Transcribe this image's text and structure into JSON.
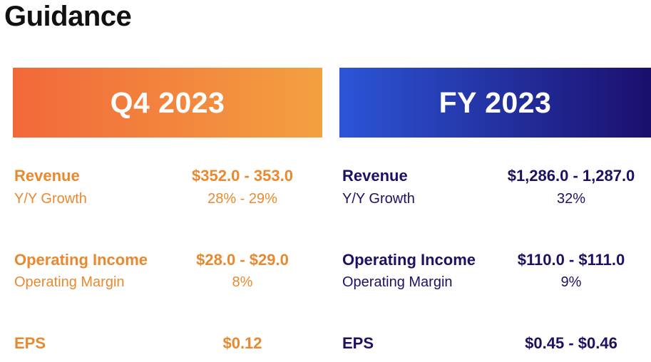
{
  "title": "Guidance",
  "q4": {
    "header": "Q4 2023",
    "revenue_label": "Revenue",
    "revenue_value": "$352.0 - 353.0",
    "growth_label": "Y/Y Growth",
    "growth_value": "28% - 29%",
    "op_income_label": "Operating Income",
    "op_income_value": "$28.0 - $29.0",
    "op_margin_label": "Operating Margin",
    "op_margin_value": "8%",
    "eps_label": "EPS",
    "eps_value": "$0.12"
  },
  "fy": {
    "header": "FY 2023",
    "revenue_label": "Revenue",
    "revenue_value": "$1,286.0 - 1,287.0",
    "growth_label": "Y/Y Growth",
    "growth_value": "32%",
    "op_income_label": "Operating Income",
    "op_income_value": "$110.0 - $111.0",
    "op_margin_label": "Operating Margin",
    "op_margin_value": "9%",
    "eps_label": "EPS",
    "eps_value": "$0.45 - $0.46"
  },
  "colors": {
    "q4_accent": "#e9892f",
    "fy_accent": "#1c1264",
    "q4_gradient_start": "#f2683a",
    "q4_gradient_end": "#f3a040",
    "fy_gradient_start": "#2c55d6",
    "fy_gradient_end": "#1b0f6e"
  }
}
